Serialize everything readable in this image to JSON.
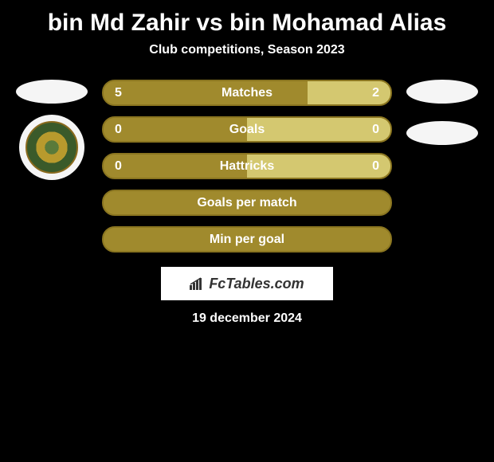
{
  "title": "bin Md Zahir vs bin Mohamad Alias",
  "subtitle": "Club competitions, Season 2023",
  "date": "19 december 2024",
  "brand": "FcTables.com",
  "colors": {
    "bar_fill": "#a08a2d",
    "bar_border": "#8a7520",
    "bar_empty": "#d4c870",
    "text": "#ffffff",
    "background": "#000000"
  },
  "stats": [
    {
      "label": "Matches",
      "left_value": "5",
      "right_value": "2",
      "left_pct": 71,
      "right_pct": 29,
      "has_values": true
    },
    {
      "label": "Goals",
      "left_value": "0",
      "right_value": "0",
      "left_pct": 50,
      "right_pct": 50,
      "has_values": true
    },
    {
      "label": "Hattricks",
      "left_value": "0",
      "right_value": "0",
      "left_pct": 50,
      "right_pct": 50,
      "has_values": true
    },
    {
      "label": "Goals per match",
      "left_value": "",
      "right_value": "",
      "left_pct": 100,
      "right_pct": 0,
      "has_values": false
    },
    {
      "label": "Min per goal",
      "left_value": "",
      "right_value": "",
      "left_pct": 100,
      "right_pct": 0,
      "has_values": false
    }
  ]
}
